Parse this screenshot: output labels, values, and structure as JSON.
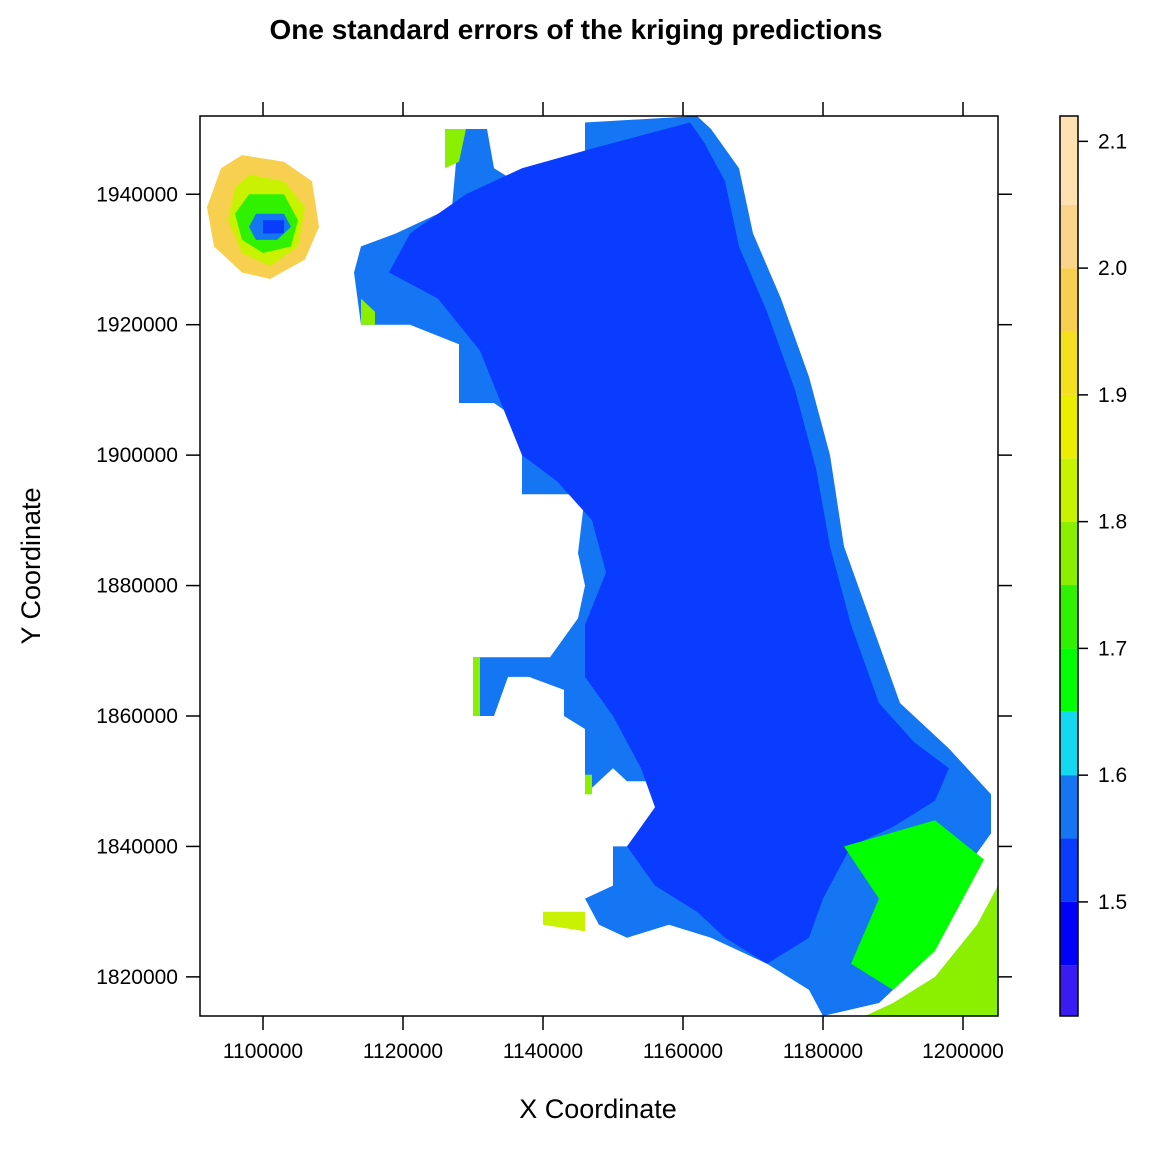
{
  "chart_data": {
    "type": "heatmap",
    "title": "One standard errors of the kriging predictions",
    "xlabel": "X Coordinate",
    "ylabel": "Y Coordinate",
    "xlim": [
      1091000,
      1205000
    ],
    "ylim": [
      1814000,
      1952000
    ],
    "x_ticks": [
      1100000,
      1120000,
      1140000,
      1160000,
      1180000,
      1200000
    ],
    "x_tick_labels": [
      "1100000",
      "1120000",
      "1140000",
      "1160000",
      "1180000",
      "1200000"
    ],
    "y_ticks": [
      1820000,
      1840000,
      1860000,
      1880000,
      1900000,
      1920000,
      1940000
    ],
    "y_tick_labels": [
      "1820000",
      "1840000",
      "1860000",
      "1880000",
      "1900000",
      "1920000",
      "1940000"
    ],
    "colorkey": {
      "range": [
        1.41,
        2.12
      ],
      "ticks": [
        1.5,
        1.6,
        1.7,
        1.8,
        1.9,
        2.0,
        2.1
      ],
      "tick_labels": [
        "1.5",
        "1.6",
        "1.7",
        "1.8",
        "1.9",
        "2.0",
        "2.1"
      ],
      "breaks": [
        1.41,
        1.45,
        1.5,
        1.55,
        1.6,
        1.65,
        1.7,
        1.75,
        1.8,
        1.85,
        1.9,
        1.95,
        2.0,
        2.05,
        2.12
      ],
      "colors": [
        "#3a1cf2",
        "#0000ff",
        "#0a3cff",
        "#1476f2",
        "#14d8f0",
        "#00ff00",
        "#30f200",
        "#8af000",
        "#c8f200",
        "#ecee00",
        "#f5e020",
        "#f8d050",
        "#fad48a",
        "#ffe0b0"
      ]
    },
    "regions": [
      {
        "level": 1.55,
        "points": [
          [
            1162000,
            1952000
          ],
          [
            1164000,
            1950000
          ],
          [
            1168000,
            1944000
          ],
          [
            1170000,
            1934000
          ],
          [
            1174000,
            1924000
          ],
          [
            1178000,
            1912000
          ],
          [
            1181000,
            1900000
          ],
          [
            1183000,
            1886000
          ],
          [
            1187000,
            1874000
          ],
          [
            1191000,
            1862000
          ],
          [
            1198000,
            1855000
          ],
          [
            1204000,
            1848000
          ],
          [
            1204000,
            1842000
          ],
          [
            1200000,
            1836000
          ],
          [
            1197000,
            1828000
          ],
          [
            1194000,
            1822000
          ],
          [
            1188000,
            1816000
          ],
          [
            1180000,
            1814000
          ],
          [
            1178000,
            1818000
          ],
          [
            1172000,
            1822000
          ],
          [
            1164000,
            1826000
          ],
          [
            1158000,
            1828000
          ],
          [
            1152000,
            1826000
          ],
          [
            1148000,
            1828000
          ],
          [
            1146000,
            1832000
          ],
          [
            1150000,
            1834000
          ],
          [
            1150000,
            1840000
          ],
          [
            1158000,
            1840000
          ],
          [
            1156000,
            1850000
          ],
          [
            1152000,
            1850000
          ],
          [
            1150000,
            1852000
          ],
          [
            1146000,
            1848000
          ],
          [
            1146000,
            1858000
          ],
          [
            1143000,
            1860000
          ],
          [
            1143000,
            1864000
          ],
          [
            1138000,
            1866000
          ],
          [
            1135000,
            1866000
          ],
          [
            1133000,
            1860000
          ],
          [
            1130000,
            1860000
          ],
          [
            1130000,
            1869000
          ],
          [
            1141000,
            1869000
          ],
          [
            1145000,
            1875000
          ],
          [
            1146000,
            1880000
          ],
          [
            1145000,
            1885000
          ],
          [
            1146000,
            1894000
          ],
          [
            1137000,
            1894000
          ],
          [
            1137000,
            1905000
          ],
          [
            1133000,
            1908000
          ],
          [
            1128000,
            1908000
          ],
          [
            1128000,
            1917000
          ],
          [
            1121000,
            1920000
          ],
          [
            1114000,
            1920000
          ],
          [
            1113000,
            1928000
          ],
          [
            1114000,
            1932000
          ],
          [
            1119000,
            1934000
          ],
          [
            1127000,
            1938000
          ],
          [
            1128000,
            1950000
          ],
          [
            1132000,
            1950000
          ],
          [
            1133000,
            1944000
          ],
          [
            1136000,
            1942000
          ],
          [
            1146000,
            1942000
          ],
          [
            1146000,
            1951000
          ]
        ]
      },
      {
        "level": 1.5,
        "points": [
          [
            1161000,
            1951000
          ],
          [
            1163000,
            1948000
          ],
          [
            1166000,
            1942000
          ],
          [
            1168000,
            1932000
          ],
          [
            1172000,
            1922000
          ],
          [
            1176000,
            1910000
          ],
          [
            1179000,
            1898000
          ],
          [
            1181000,
            1886000
          ],
          [
            1184000,
            1874000
          ],
          [
            1188000,
            1862000
          ],
          [
            1193000,
            1856000
          ],
          [
            1198000,
            1852000
          ],
          [
            1196000,
            1847000
          ],
          [
            1190000,
            1843000
          ],
          [
            1184000,
            1840000
          ],
          [
            1180000,
            1832000
          ],
          [
            1178000,
            1826000
          ],
          [
            1172000,
            1822000
          ],
          [
            1166000,
            1826000
          ],
          [
            1162000,
            1830000
          ],
          [
            1156000,
            1834000
          ],
          [
            1152000,
            1840000
          ],
          [
            1156000,
            1846000
          ],
          [
            1154000,
            1852000
          ],
          [
            1150000,
            1860000
          ],
          [
            1146000,
            1866000
          ],
          [
            1146000,
            1874000
          ],
          [
            1149000,
            1882000
          ],
          [
            1147000,
            1890000
          ],
          [
            1142000,
            1896000
          ],
          [
            1137000,
            1900000
          ],
          [
            1134000,
            1908000
          ],
          [
            1131000,
            1916000
          ],
          [
            1125000,
            1924000
          ],
          [
            1118000,
            1928000
          ],
          [
            1121000,
            1934000
          ],
          [
            1129000,
            1940000
          ],
          [
            1137000,
            1944000
          ],
          [
            1147000,
            1947000
          ]
        ]
      },
      {
        "level": 1.65,
        "points": [
          [
            1183000,
            1840000
          ],
          [
            1196000,
            1844000
          ],
          [
            1203000,
            1838000
          ],
          [
            1200000,
            1832000
          ],
          [
            1196000,
            1824000
          ],
          [
            1190000,
            1818000
          ],
          [
            1184000,
            1822000
          ],
          [
            1188000,
            1832000
          ]
        ]
      },
      {
        "level": 1.75,
        "points": [
          [
            1190000,
            1816000
          ],
          [
            1196000,
            1820000
          ],
          [
            1202000,
            1828000
          ],
          [
            1205000,
            1834000
          ],
          [
            1205000,
            1814000
          ],
          [
            1186000,
            1814000
          ]
        ]
      },
      {
        "level": 1.75,
        "points": [
          [
            1126000,
            1950000
          ],
          [
            1129000,
            1950000
          ],
          [
            1128000,
            1945000
          ],
          [
            1126000,
            1944000
          ]
        ]
      },
      {
        "level": 1.75,
        "points": [
          [
            1114000,
            1924000
          ],
          [
            1116000,
            1922000
          ],
          [
            1116000,
            1920000
          ],
          [
            1114000,
            1920000
          ]
        ]
      },
      {
        "level": 1.75,
        "points": [
          [
            1130000,
            1860000
          ],
          [
            1131000,
            1860000
          ],
          [
            1131000,
            1869000
          ],
          [
            1130000,
            1869000
          ]
        ]
      },
      {
        "level": 1.75,
        "points": [
          [
            1146000,
            1848000
          ],
          [
            1147000,
            1848000
          ],
          [
            1147000,
            1851000
          ],
          [
            1146000,
            1851000
          ]
        ]
      },
      {
        "level": 1.8,
        "points": [
          [
            1140000,
            1830000
          ],
          [
            1146000,
            1830000
          ],
          [
            1146000,
            1827000
          ],
          [
            1140000,
            1828000
          ]
        ]
      },
      {
        "level": 1.95,
        "points": [
          [
            1097000,
            1946000
          ],
          [
            1103000,
            1945000
          ],
          [
            1107000,
            1942000
          ],
          [
            1108000,
            1935000
          ],
          [
            1106000,
            1930000
          ],
          [
            1101000,
            1927000
          ],
          [
            1097000,
            1928000
          ],
          [
            1093000,
            1932000
          ],
          [
            1092000,
            1938000
          ],
          [
            1094000,
            1944000
          ]
        ]
      },
      {
        "level": 1.8,
        "points": [
          [
            1098000,
            1943000
          ],
          [
            1103000,
            1942000
          ],
          [
            1106000,
            1938000
          ],
          [
            1105000,
            1932000
          ],
          [
            1101000,
            1929000
          ],
          [
            1097000,
            1931000
          ],
          [
            1095000,
            1936000
          ],
          [
            1096000,
            1941000
          ]
        ]
      },
      {
        "level": 1.7,
        "points": [
          [
            1098000,
            1940000
          ],
          [
            1103000,
            1940000
          ],
          [
            1105000,
            1936000
          ],
          [
            1104000,
            1932000
          ],
          [
            1100000,
            1931000
          ],
          [
            1097000,
            1933000
          ],
          [
            1096000,
            1937000
          ]
        ]
      },
      {
        "level": 1.55,
        "points": [
          [
            1099000,
            1937000
          ],
          [
            1103000,
            1937000
          ],
          [
            1104000,
            1935000
          ],
          [
            1102000,
            1933000
          ],
          [
            1099000,
            1933000
          ],
          [
            1098000,
            1935000
          ]
        ]
      },
      {
        "level": 1.5,
        "points": [
          [
            1100000,
            1936000
          ],
          [
            1103000,
            1936000
          ],
          [
            1103000,
            1934000
          ],
          [
            1100000,
            1934000
          ]
        ]
      }
    ]
  }
}
